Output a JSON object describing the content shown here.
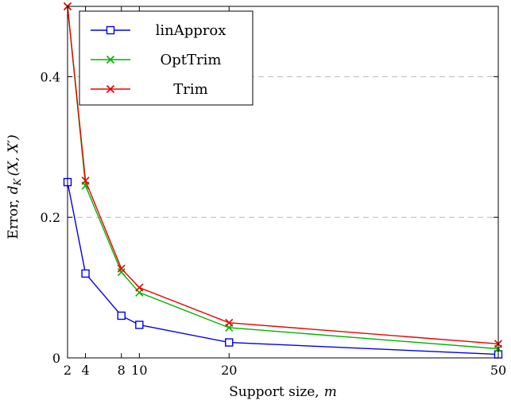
{
  "chart_data": {
    "type": "line",
    "title": "",
    "xlabel": "Support size, m",
    "ylabel": "Error, d_K(X, X′)",
    "xlim": [
      2,
      50
    ],
    "ylim": [
      0,
      0.5
    ],
    "xticks": [
      2,
      4,
      8,
      10,
      20,
      50
    ],
    "yticks": [
      0,
      0.2,
      0.4
    ],
    "grid": "horizontal dashed gridlines at y = 0.2 and 0.4",
    "legend_position": "top-left inside plot area",
    "x": [
      2,
      4,
      8,
      10,
      20,
      50
    ],
    "series": [
      {
        "name": "linApprox",
        "color": "#0000ee",
        "marker": "square",
        "values": [
          0.25,
          0.12,
          0.06,
          0.047,
          0.022,
          0.005
        ]
      },
      {
        "name": "OptTrim",
        "color": "#00b400",
        "marker": "x",
        "values": [
          0.5,
          0.245,
          0.122,
          0.093,
          0.043,
          0.013
        ]
      },
      {
        "name": "Trim",
        "color": "#ee0000",
        "marker": "x",
        "values": [
          0.5,
          0.252,
          0.127,
          0.1,
          0.05,
          0.02
        ]
      }
    ]
  },
  "labels": {
    "xlabel_prefix": "Support size,",
    "xlabel_var": "m",
    "ylabel_prefix": "Error,",
    "ylabel_var": "d",
    "ylabel_sub": "K",
    "ylabel_rest": "(X, X′)"
  }
}
